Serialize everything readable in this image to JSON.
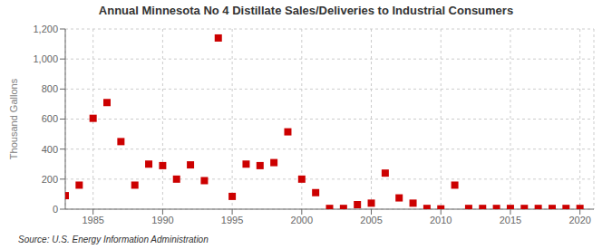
{
  "chart_data": {
    "type": "scatter",
    "title": "Annual Minnesota No 4 Distillate Sales/Deliveries to Industrial Consumers",
    "y_label": "Thousand Gallons",
    "annotations": [
      "Source: U.S. Energy Information Administration"
    ],
    "x": [
      1983,
      1984,
      1985,
      1986,
      1987,
      1988,
      1989,
      1990,
      1991,
      1992,
      1993,
      1994,
      1995,
      1996,
      1997,
      1998,
      1999,
      2000,
      2001,
      2002,
      2003,
      2004,
      2005,
      2006,
      2007,
      2008,
      2009,
      2010,
      2011,
      2012,
      2013,
      2014,
      2015,
      2016,
      2017,
      2018,
      2019,
      2020
    ],
    "values": [
      90,
      160,
      605,
      710,
      450,
      160,
      300,
      290,
      200,
      295,
      190,
      1140,
      85,
      300,
      290,
      310,
      515,
      200,
      110,
      5,
      5,
      30,
      40,
      240,
      75,
      40,
      5,
      2,
      160,
      5,
      5,
      5,
      5,
      5,
      5,
      5,
      5,
      5
    ],
    "color": "#cc0000",
    "marker": "square",
    "xlim": [
      1983,
      2021
    ],
    "ylim": [
      0,
      1200
    ],
    "xticks": [
      1985,
      1990,
      1995,
      2000,
      2005,
      2010,
      2015,
      2020
    ],
    "yticks": [
      0,
      200,
      400,
      600,
      800,
      {
        "value": 1000,
        "label": "1,000"
      },
      {
        "value": 1200,
        "label": "1,200"
      }
    ],
    "grid": true
  }
}
